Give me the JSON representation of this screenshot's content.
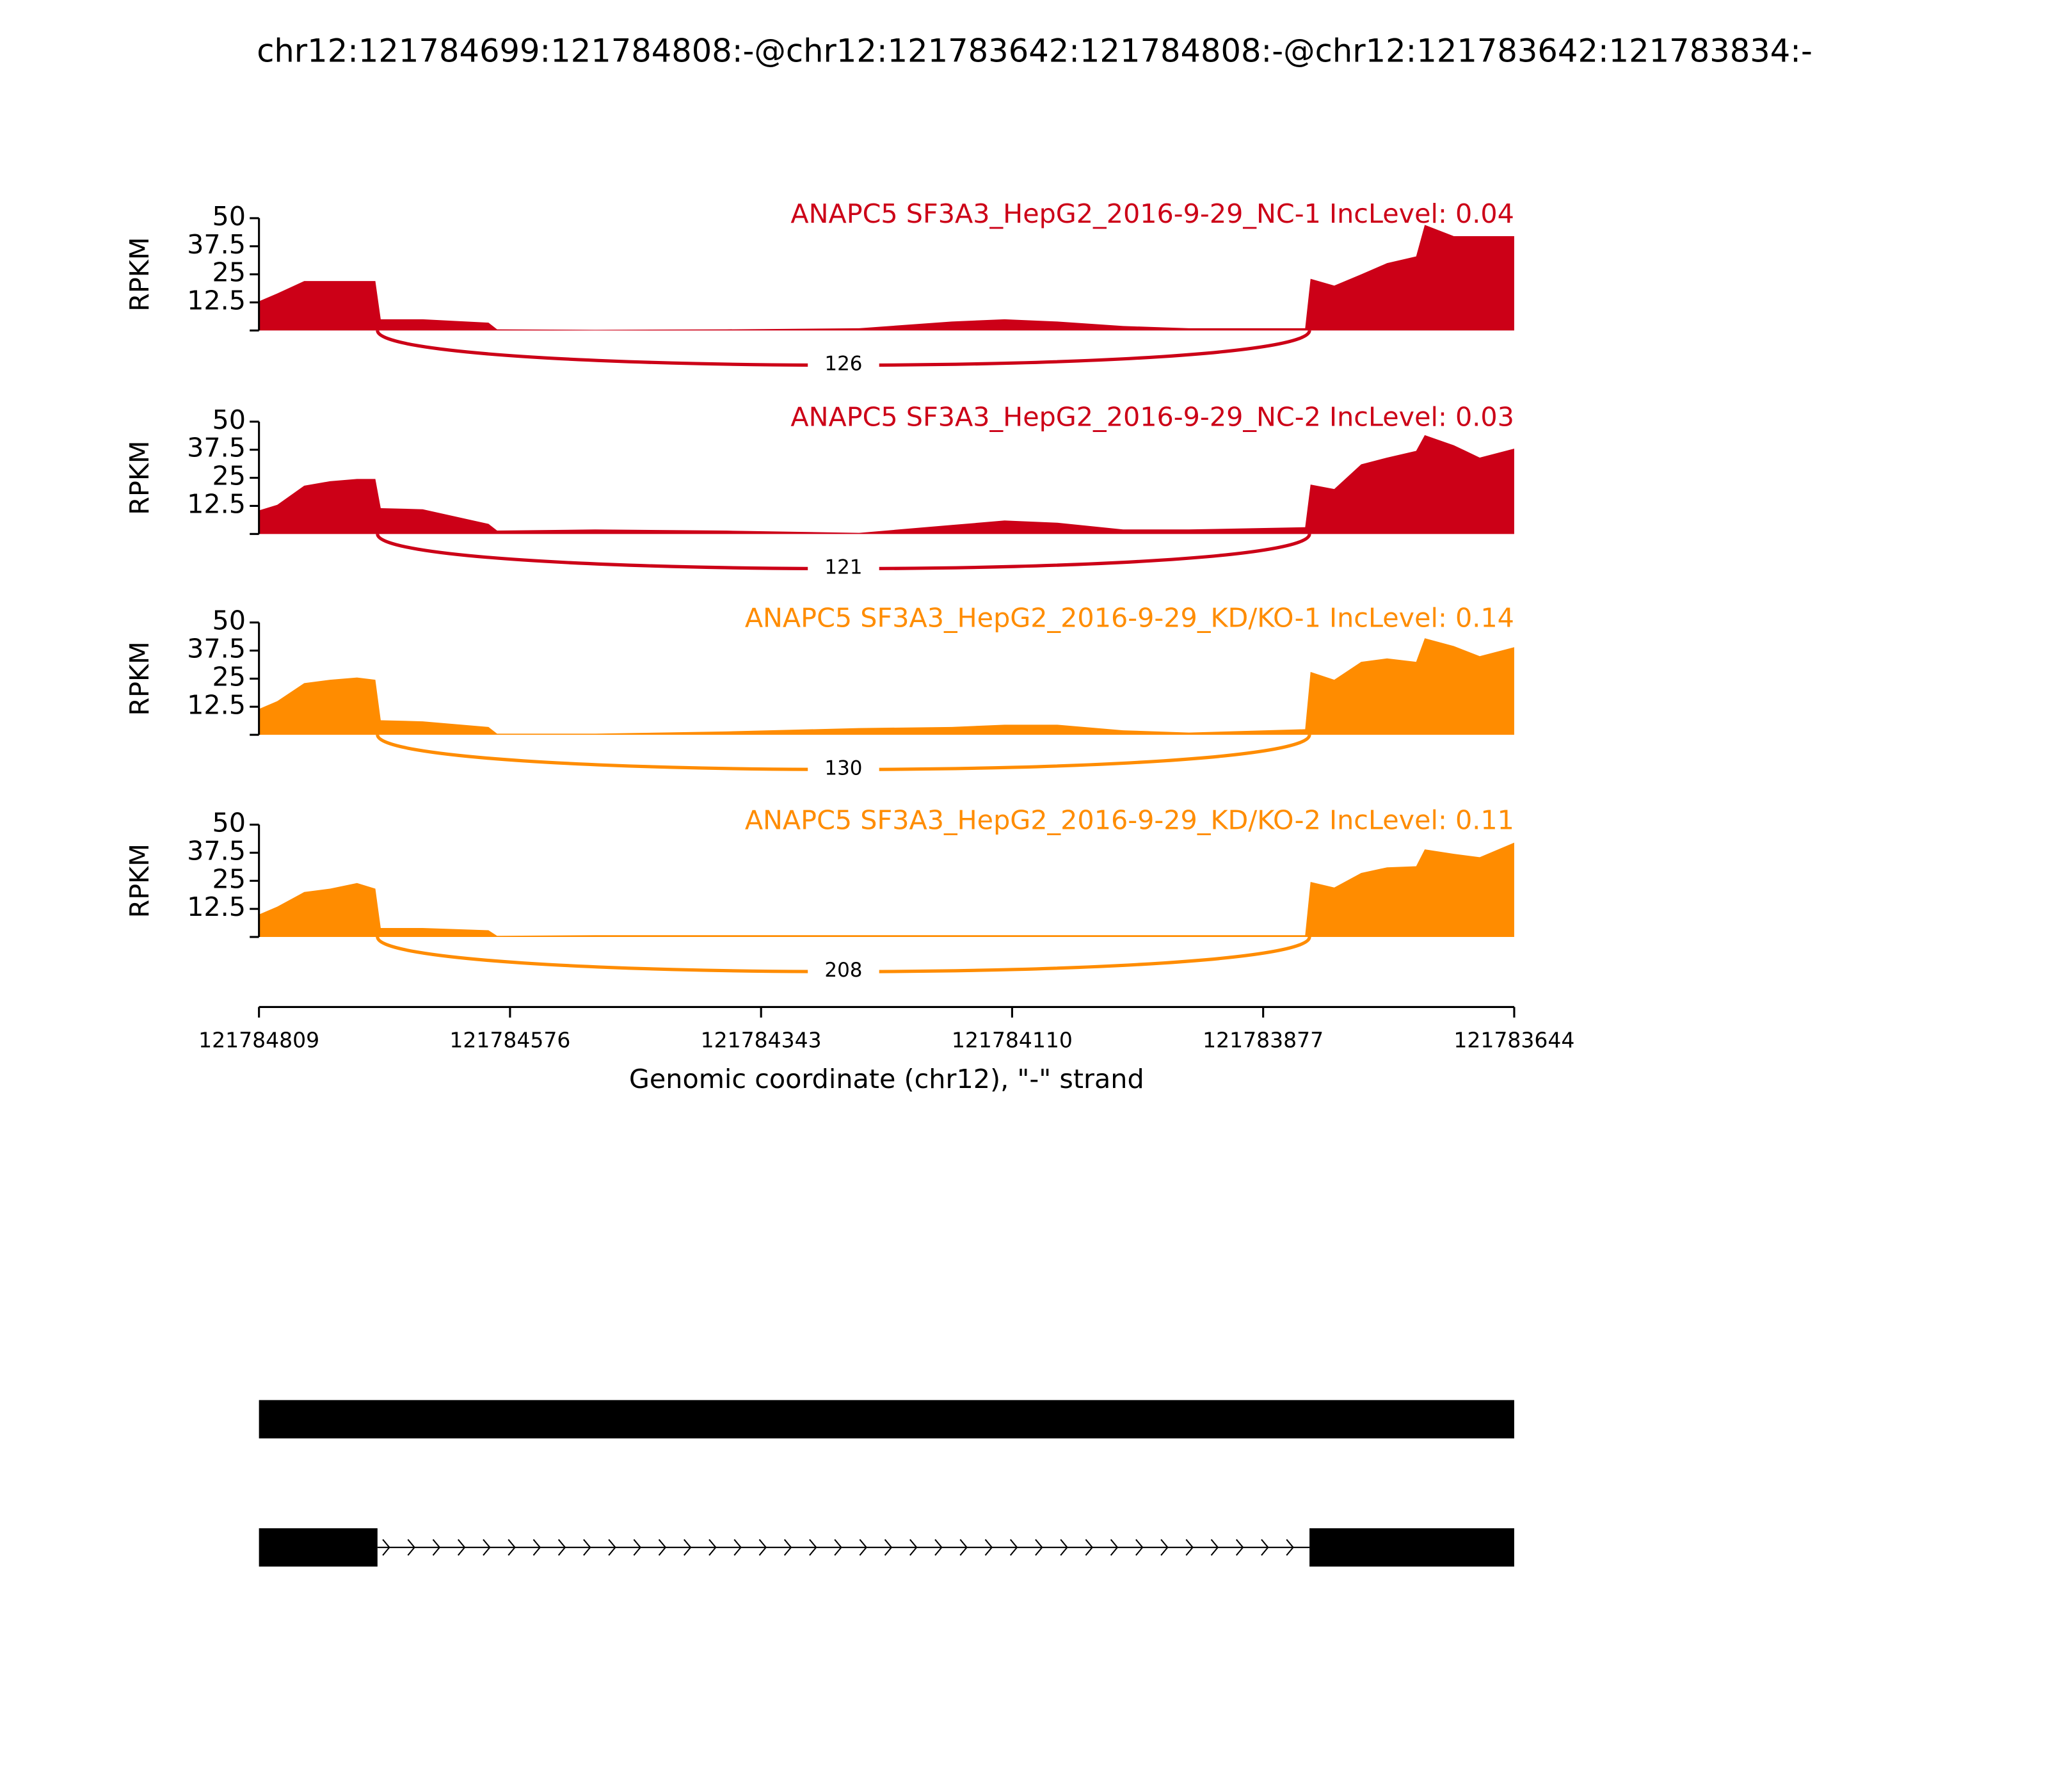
{
  "title": "chr12:121784699:121784808:-@chr12:121783642:121784808:-@chr12:121783642:121783834:-",
  "x_axis": {
    "label": "Genomic coordinate (chr12), \"-\" strand",
    "xlim": [
      121784809,
      121783644
    ],
    "xticks": [
      121784809,
      121784576,
      121784343,
      121784110,
      121783877,
      121783644
    ]
  },
  "chart_data": [
    {
      "type": "area",
      "title": "ANAPC5 SF3A3_HepG2_2016-9-29_NC-1 IncLevel: 0.04",
      "ylabel": "RPKM",
      "color": "#cc0017",
      "ylim": [
        0,
        50
      ],
      "yticks": [
        12.5,
        25,
        37.5,
        50
      ],
      "x": [
        121784809,
        121784792,
        121784767,
        121784743,
        121784718,
        121784701,
        121784696,
        121784657,
        121784596,
        121784588,
        121784497,
        121784375,
        121784252,
        121784166,
        121784117,
        121784068,
        121784007,
        121783946,
        121783838,
        121783833,
        121783811,
        121783786,
        121783762,
        121783735,
        121783727,
        121783700,
        121783676,
        121783644
      ],
      "values": [
        13,
        16.5,
        22,
        22,
        22,
        22,
        5,
        5,
        3.5,
        0.5,
        0.3,
        0.5,
        1,
        4,
        5,
        4,
        2,
        1,
        1,
        23,
        20,
        25,
        30,
        33,
        47,
        42,
        42,
        42
      ],
      "junctions": [
        {
          "from": 121784699,
          "to": 121783834,
          "count": 126
        }
      ]
    },
    {
      "type": "area",
      "title": "ANAPC5 SF3A3_HepG2_2016-9-29_NC-2 IncLevel: 0.03",
      "ylabel": "RPKM",
      "color": "#cc0017",
      "ylim": [
        0,
        50
      ],
      "yticks": [
        12.5,
        25,
        37.5,
        50
      ],
      "x": [
        121784809,
        121784792,
        121784767,
        121784743,
        121784718,
        121784701,
        121784696,
        121784657,
        121784596,
        121784588,
        121784497,
        121784375,
        121784252,
        121784166,
        121784117,
        121784068,
        121784007,
        121783946,
        121783838,
        121783833,
        121783811,
        121783786,
        121783762,
        121783735,
        121783727,
        121783700,
        121783676,
        121783644
      ],
      "values": [
        10.5,
        13,
        21.5,
        23.5,
        24.5,
        24.5,
        11.5,
        11,
        4.5,
        1.5,
        2,
        1.5,
        0.5,
        4,
        6,
        5,
        2,
        2,
        3,
        22,
        20,
        31,
        34,
        37,
        44,
        39.5,
        34,
        38
      ],
      "junctions": [
        {
          "from": 121784699,
          "to": 121783834,
          "count": 121
        }
      ]
    },
    {
      "type": "area",
      "title": "ANAPC5 SF3A3_HepG2_2016-9-29_KD/KO-1 IncLevel: 0.14",
      "ylabel": "RPKM",
      "color": "#ff8c00",
      "ylim": [
        0,
        50
      ],
      "yticks": [
        12.5,
        25,
        37.5,
        50
      ],
      "x": [
        121784809,
        121784792,
        121784767,
        121784743,
        121784718,
        121784701,
        121784696,
        121784657,
        121784596,
        121784588,
        121784497,
        121784375,
        121784252,
        121784166,
        121784117,
        121784068,
        121784007,
        121783946,
        121783838,
        121783833,
        121783811,
        121783786,
        121783762,
        121783735,
        121783727,
        121783700,
        121783676,
        121783644
      ],
      "values": [
        11.5,
        15,
        23,
        24.5,
        25.5,
        24.5,
        6.5,
        6,
        3.5,
        0.5,
        0.5,
        1.5,
        3,
        3.5,
        4.5,
        4.5,
        2,
        1,
        2.5,
        28,
        24.5,
        32.5,
        34,
        32.5,
        43,
        39.5,
        35,
        39
      ],
      "junctions": [
        {
          "from": 121784699,
          "to": 121783834,
          "count": 130
        }
      ]
    },
    {
      "type": "area",
      "title": "ANAPC5 SF3A3_HepG2_2016-9-29_KD/KO-2 IncLevel: 0.11",
      "ylabel": "RPKM",
      "color": "#ff8c00",
      "ylim": [
        0,
        50
      ],
      "yticks": [
        12.5,
        25,
        37.5,
        50
      ],
      "x": [
        121784809,
        121784792,
        121784767,
        121784743,
        121784718,
        121784701,
        121784696,
        121784657,
        121784596,
        121784588,
        121784497,
        121784375,
        121784252,
        121784166,
        121784117,
        121784068,
        121784007,
        121783946,
        121783838,
        121783833,
        121783811,
        121783786,
        121783762,
        121783735,
        121783727,
        121783700,
        121783676,
        121783644
      ],
      "values": [
        10,
        13.5,
        20,
        21.5,
        24,
        21.5,
        4,
        4,
        3,
        0.5,
        0.8,
        0.8,
        0.8,
        0.8,
        0.8,
        0.8,
        0.8,
        0.8,
        0.8,
        24.5,
        22,
        28.5,
        31,
        31.5,
        39,
        37,
        35.5,
        42
      ],
      "junctions": [
        {
          "from": 121784699,
          "to": 121783834,
          "count": 208
        }
      ]
    }
  ],
  "gene_models": [
    {
      "exons": [
        [
          121784809,
          121783644
        ]
      ]
    },
    {
      "exons": [
        [
          121784809,
          121784699
        ],
        [
          121783834,
          121783644
        ]
      ]
    }
  ]
}
